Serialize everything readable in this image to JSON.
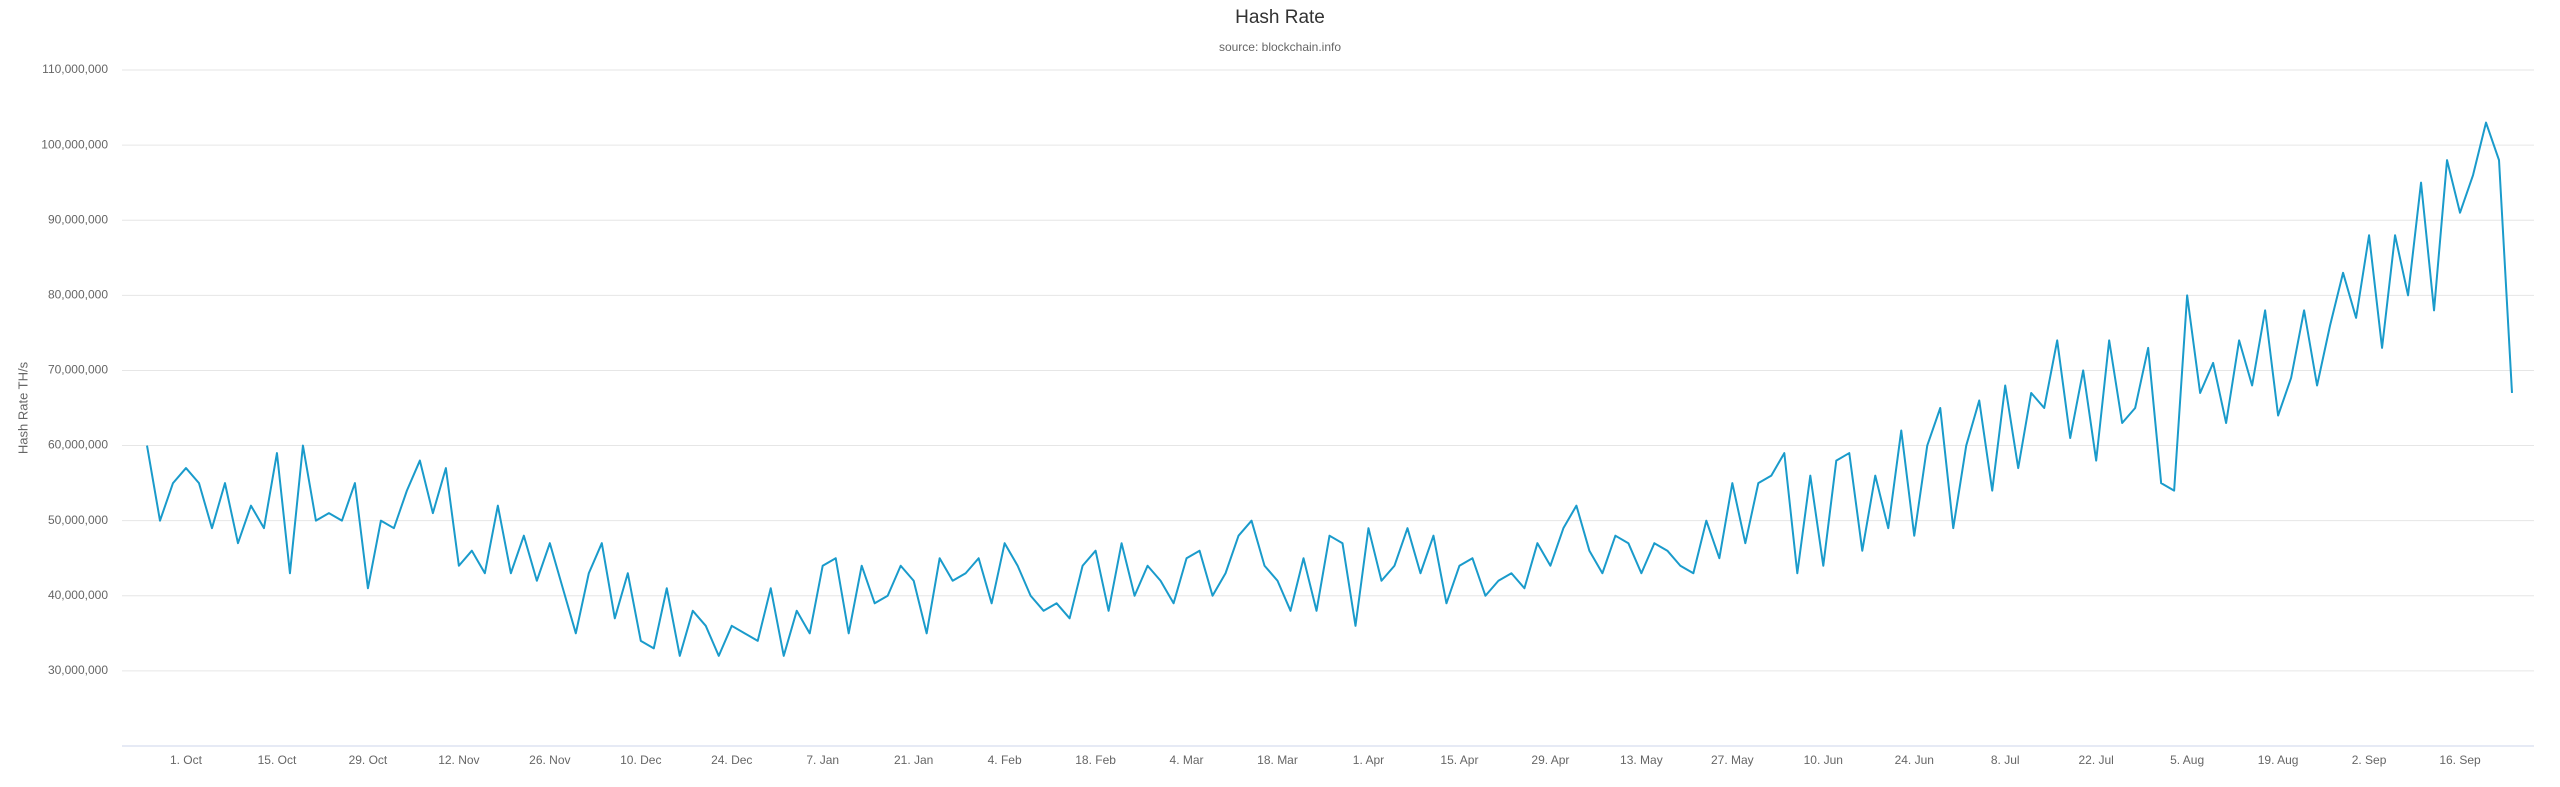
{
  "chart_data": {
    "type": "line",
    "title": "Hash Rate",
    "subtitle": "source: blockchain.info",
    "ylabel": "Hash Rate TH/s",
    "color": "#1a9bcb",
    "grid": true,
    "ylim": [
      20000000,
      110000000
    ],
    "yticks": [
      {
        "value": 30000000,
        "label": "30,000,000"
      },
      {
        "value": 40000000,
        "label": "40,000,000"
      },
      {
        "value": 50000000,
        "label": "50,000,000"
      },
      {
        "value": 60000000,
        "label": "60,000,000"
      },
      {
        "value": 70000000,
        "label": "70,000,000"
      },
      {
        "value": 80000000,
        "label": "80,000,000"
      },
      {
        "value": 90000000,
        "label": "90,000,000"
      },
      {
        "value": 100000000,
        "label": "100,000,000"
      },
      {
        "value": 110000000,
        "label": "110,000,000"
      }
    ],
    "categories": [
      null,
      null,
      null,
      "1. Oct",
      null,
      null,
      null,
      null,
      null,
      null,
      "15. Oct",
      null,
      null,
      null,
      null,
      null,
      null,
      "29. Oct",
      null,
      null,
      null,
      null,
      null,
      null,
      "12. Nov",
      null,
      null,
      null,
      null,
      null,
      null,
      "26. Nov",
      null,
      null,
      null,
      null,
      null,
      null,
      "10. Dec",
      null,
      null,
      null,
      null,
      null,
      null,
      "24. Dec",
      null,
      null,
      null,
      null,
      null,
      null,
      "7. Jan",
      null,
      null,
      null,
      null,
      null,
      null,
      "21. Jan",
      null,
      null,
      null,
      null,
      null,
      null,
      "4. Feb",
      null,
      null,
      null,
      null,
      null,
      null,
      "18. Feb",
      null,
      null,
      null,
      null,
      null,
      null,
      "4. Mar",
      null,
      null,
      null,
      null,
      null,
      null,
      "18. Mar",
      null,
      null,
      null,
      null,
      null,
      null,
      "1. Apr",
      null,
      null,
      null,
      null,
      null,
      null,
      "15. Apr",
      null,
      null,
      null,
      null,
      null,
      null,
      "29. Apr",
      null,
      null,
      null,
      null,
      null,
      null,
      "13. May",
      null,
      null,
      null,
      null,
      null,
      null,
      "27. May",
      null,
      null,
      null,
      null,
      null,
      null,
      "10. Jun",
      null,
      null,
      null,
      null,
      null,
      null,
      "24. Jun",
      null,
      null,
      null,
      null,
      null,
      null,
      "8. Jul",
      null,
      null,
      null,
      null,
      null,
      null,
      "22. Jul",
      null,
      null,
      null,
      null,
      null,
      null,
      "5. Aug",
      null,
      null,
      null,
      null,
      null,
      null,
      "19. Aug",
      null,
      null,
      null,
      null,
      null,
      null,
      "2. Sep",
      null,
      null,
      null,
      null,
      null,
      null,
      "16. Sep",
      null,
      null,
      null,
      null
    ],
    "values": [
      60000000,
      50000000,
      55000000,
      57000000,
      55000000,
      49000000,
      55000000,
      47000000,
      52000000,
      49000000,
      59000000,
      43000000,
      60000000,
      50000000,
      51000000,
      50000000,
      55000000,
      41000000,
      50000000,
      49000000,
      54000000,
      58000000,
      51000000,
      57000000,
      44000000,
      46000000,
      43000000,
      52000000,
      43000000,
      48000000,
      42000000,
      47000000,
      41000000,
      35000000,
      43000000,
      47000000,
      37000000,
      43000000,
      34000000,
      33000000,
      41000000,
      32000000,
      38000000,
      36000000,
      32000000,
      36000000,
      35000000,
      34000000,
      41000000,
      32000000,
      38000000,
      35000000,
      44000000,
      45000000,
      35000000,
      44000000,
      39000000,
      40000000,
      44000000,
      42000000,
      35000000,
      45000000,
      42000000,
      43000000,
      45000000,
      39000000,
      47000000,
      44000000,
      40000000,
      38000000,
      39000000,
      37000000,
      44000000,
      46000000,
      38000000,
      47000000,
      40000000,
      44000000,
      42000000,
      39000000,
      45000000,
      46000000,
      40000000,
      43000000,
      48000000,
      50000000,
      44000000,
      42000000,
      38000000,
      45000000,
      38000000,
      48000000,
      47000000,
      36000000,
      49000000,
      42000000,
      44000000,
      49000000,
      43000000,
      48000000,
      39000000,
      44000000,
      45000000,
      40000000,
      42000000,
      43000000,
      41000000,
      47000000,
      44000000,
      49000000,
      52000000,
      46000000,
      43000000,
      48000000,
      47000000,
      43000000,
      47000000,
      46000000,
      44000000,
      43000000,
      50000000,
      45000000,
      55000000,
      47000000,
      55000000,
      56000000,
      59000000,
      43000000,
      56000000,
      44000000,
      58000000,
      59000000,
      46000000,
      56000000,
      49000000,
      62000000,
      48000000,
      60000000,
      65000000,
      49000000,
      60000000,
      66000000,
      54000000,
      68000000,
      57000000,
      67000000,
      65000000,
      74000000,
      61000000,
      70000000,
      58000000,
      74000000,
      63000000,
      65000000,
      73000000,
      55000000,
      54000000,
      80000000,
      67000000,
      71000000,
      63000000,
      74000000,
      68000000,
      78000000,
      64000000,
      69000000,
      78000000,
      68000000,
      76000000,
      83000000,
      77000000,
      88000000,
      73000000,
      88000000,
      80000000,
      95000000,
      78000000,
      98000000,
      91000000,
      96000000,
      103000000,
      98000000,
      67000000
    ]
  }
}
